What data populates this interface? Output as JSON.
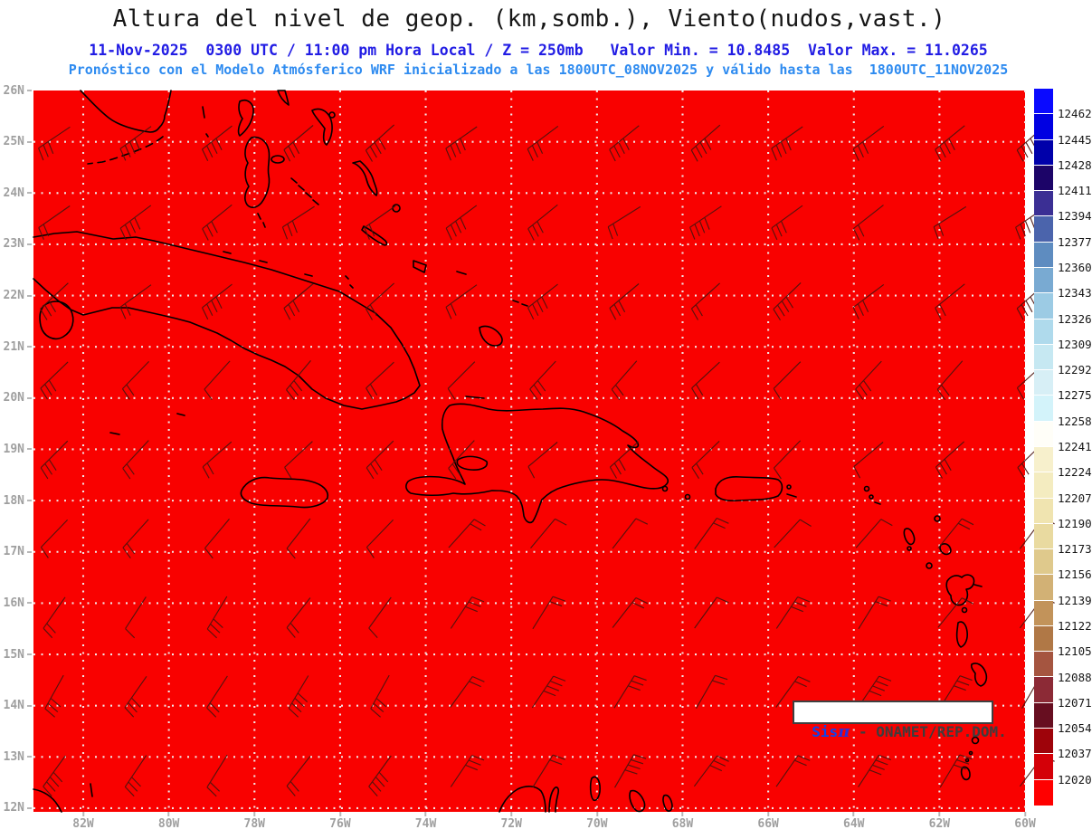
{
  "header": {
    "title": "Altura del nivel de geop. (km,somb.), Viento(nudos,vast.)",
    "subtitle1": "11-Nov-2025  0300 UTC / 11:00 pm Hora Local / Z = 250mb   Valor Min. = 10.8485  Valor Max. = 11.0265",
    "subtitle2": "Pronóstico con el Modelo Atmósferico WRF inicializado a las 1800UTC_08NOV2025 y válido hasta las  1800UTC_11NOV2025"
  },
  "field": {
    "variable": "geopotential-height",
    "level": "250mb",
    "valor_min": 10.8485,
    "valor_max": 11.0265,
    "units_shading": "km",
    "units_wind": "nudos"
  },
  "axes": {
    "lat_labels": [
      "26N",
      "25N",
      "24N",
      "23N",
      "22N",
      "21N",
      "20N",
      "19N",
      "18N",
      "17N",
      "16N",
      "15N",
      "14N",
      "13N",
      "12N"
    ],
    "lon_labels": [
      "82W",
      "80W",
      "78W",
      "76W",
      "74W",
      "72W",
      "70W",
      "68W",
      "66W",
      "64W",
      "62W",
      "60W"
    ]
  },
  "colorbar": {
    "labels": [
      "12462",
      "12445",
      "12428",
      "12411",
      "12394",
      "12377",
      "12360",
      "12343",
      "12326",
      "12309",
      "12292",
      "12275",
      "12258",
      "12241",
      "12224",
      "12207",
      "12190",
      "12173",
      "12156",
      "12139",
      "12122",
      "12105",
      "12088",
      "12071",
      "12054",
      "12037",
      "12020"
    ],
    "colors": [
      "#0a0aff",
      "#0000e2",
      "#0000aa",
      "#1c0468",
      "#3b2f94",
      "#4b64ac",
      "#5e8cc0",
      "#79aad2",
      "#9ccbe4",
      "#afdaec",
      "#c6e8f2",
      "#d7eff6",
      "#d3f3fa",
      "#fffef8",
      "#f7f0cc",
      "#f4ecc0",
      "#f0e4b0",
      "#e9daa0",
      "#dfc98c",
      "#d2b175",
      "#c2935a",
      "#b07846",
      "#a55540",
      "#8c2a36",
      "#670e20",
      "#9e030a",
      "#d40008",
      "#ff0000"
    ]
  },
  "map_style": {
    "fill": "#f90100",
    "coast": "#000000",
    "grid": "#f2f2f2",
    "barb": "#4a130d"
  },
  "wind_field": {
    "col_start": 23,
    "col_step": 90,
    "col_count": 13,
    "row_start": 52,
    "row_step": 87.5,
    "rows": [
      {
        "ticks": 4,
        "angle": 38
      },
      {
        "ticks": 3,
        "angle": 36
      },
      {
        "ticks": 3,
        "angle": 40
      },
      {
        "ticks": 2,
        "angle": 46
      },
      {
        "ticks": 2,
        "angle": 44
      },
      {
        "ticks": 1,
        "angle": 50
      },
      {
        "ticks": 2,
        "angle": 55
      },
      {
        "ticks": 3,
        "angle": 58
      },
      {
        "ticks": 3,
        "angle": 56
      }
    ]
  },
  "watermark": {
    "brand": "Sis",
    "pi": "π",
    "rest": " - ONAMET/REP.DOM."
  }
}
